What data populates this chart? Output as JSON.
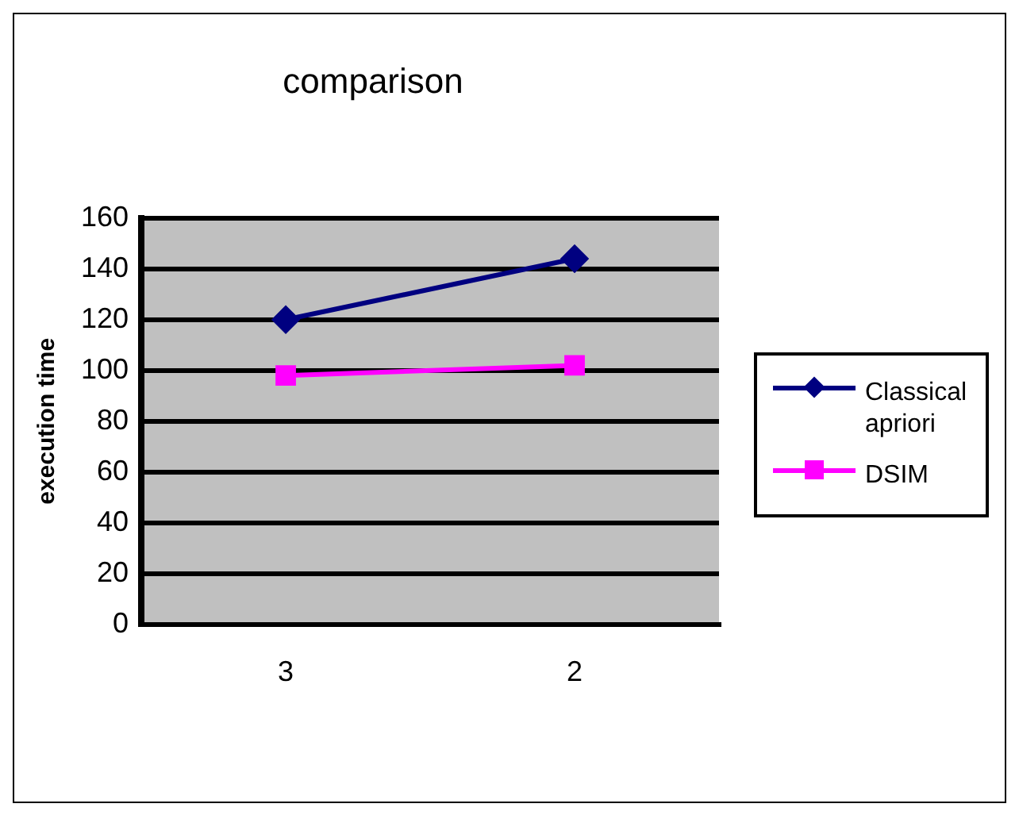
{
  "chart_data": {
    "type": "line",
    "title": "comparison",
    "ylabel": "execution time",
    "categories": [
      "3",
      "2"
    ],
    "series": [
      {
        "name": "Classical apriori",
        "color": "#000080",
        "values": [
          120,
          144
        ],
        "marker": "diamond"
      },
      {
        "name": "DSIM",
        "color": "#ff00ff",
        "values": [
          98,
          102
        ],
        "marker": "square"
      }
    ],
    "ylim": [
      0,
      160
    ],
    "yticks": [
      0,
      20,
      40,
      60,
      80,
      100,
      120,
      140,
      160
    ],
    "grid": "y",
    "legend": "right",
    "line_style": "solid"
  }
}
